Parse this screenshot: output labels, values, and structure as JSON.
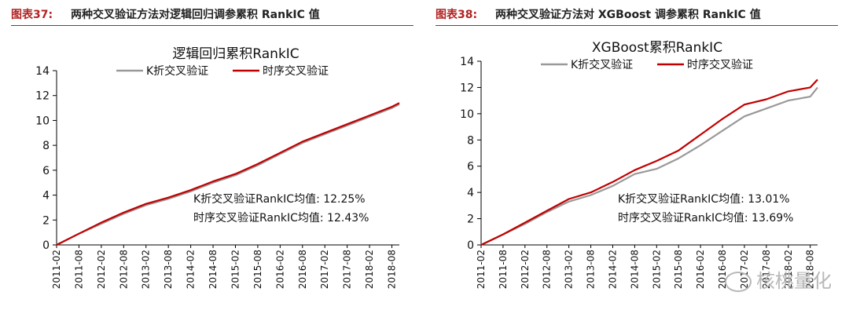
{
  "figures": [
    {
      "fig_num": "图表37:",
      "caption": "两种交叉验证方法对逻辑回归调参累积 RankIC 值"
    },
    {
      "fig_num": "图表38:",
      "caption": "两种交叉验证方法对 XGBoost 调参累积 RankIC 值"
    }
  ],
  "watermark": "核桃量化",
  "colors": {
    "kfold": "#999999",
    "timeseries": "#c00000",
    "axis": "#000000",
    "accent": "#b22222"
  },
  "chart_data": [
    {
      "type": "line",
      "title": "逻辑回归累积RankIC",
      "xlabel": "",
      "ylabel": "",
      "ylim": [
        0,
        14
      ],
      "yticks": [
        "0",
        "2",
        "4",
        "6",
        "8",
        "10",
        "12",
        "14"
      ],
      "grid": false,
      "legend": "top",
      "x_tick_labels": [
        "2011-02",
        "2011-08",
        "2012-02",
        "2012-08",
        "2013-02",
        "2013-08",
        "2014-02",
        "2014-08",
        "2015-02",
        "2015-08",
        "2016-02",
        "2016-08",
        "2017-02",
        "2017-08",
        "2018-02",
        "2018-08"
      ],
      "x": [
        "2011-02",
        "2011-08",
        "2012-02",
        "2012-08",
        "2013-02",
        "2013-08",
        "2014-02",
        "2014-08",
        "2015-02",
        "2015-08",
        "2016-02",
        "2016-08",
        "2017-02",
        "2017-08",
        "2018-02",
        "2018-08",
        "2018-10"
      ],
      "series": [
        {
          "name": "K折交叉验证",
          "values": [
            0.0,
            0.9,
            1.7,
            2.5,
            3.2,
            3.7,
            4.3,
            5.0,
            5.6,
            6.4,
            7.3,
            8.2,
            8.9,
            9.6,
            10.3,
            11.0,
            11.3
          ]
        },
        {
          "name": "时序交叉验证",
          "values": [
            0.0,
            0.9,
            1.8,
            2.6,
            3.3,
            3.8,
            4.4,
            5.1,
            5.7,
            6.5,
            7.4,
            8.3,
            9.0,
            9.7,
            10.4,
            11.1,
            11.4
          ]
        }
      ],
      "annotations": [
        "K折交叉验证RankIC均值: 12.25%",
        "时序交叉验证RankIC均值: 12.43%"
      ]
    },
    {
      "type": "line",
      "title": "XGBoost累积RankIC",
      "xlabel": "",
      "ylabel": "",
      "ylim": [
        0,
        14
      ],
      "yticks": [
        "0",
        "2",
        "4",
        "6",
        "8",
        "10",
        "12",
        "14"
      ],
      "grid": false,
      "legend": "top",
      "x_tick_labels": [
        "2011-02",
        "2011-08",
        "2012-02",
        "2012-08",
        "2013-02",
        "2013-08",
        "2014-02",
        "2014-08",
        "2015-02",
        "2015-08",
        "2016-02",
        "2016-08",
        "2017-02",
        "2017-08",
        "2018-02",
        "2018-08"
      ],
      "x": [
        "2011-02",
        "2011-08",
        "2012-02",
        "2012-08",
        "2013-02",
        "2013-08",
        "2014-02",
        "2014-08",
        "2015-02",
        "2015-08",
        "2016-02",
        "2016-08",
        "2017-02",
        "2017-08",
        "2018-02",
        "2018-08",
        "2018-10"
      ],
      "series": [
        {
          "name": "K折交叉验证",
          "values": [
            0.0,
            0.8,
            1.6,
            2.5,
            3.3,
            3.8,
            4.5,
            5.4,
            5.8,
            6.6,
            7.6,
            8.7,
            9.8,
            10.4,
            11.0,
            11.3,
            12.0
          ]
        },
        {
          "name": "时序交叉验证",
          "values": [
            0.0,
            0.8,
            1.7,
            2.6,
            3.5,
            4.0,
            4.8,
            5.7,
            6.4,
            7.2,
            8.4,
            9.6,
            10.7,
            11.1,
            11.7,
            12.0,
            12.6
          ]
        }
      ],
      "annotations": [
        "K折交叉验证RankIC均值: 13.01%",
        "时序交叉验证RankIC均值: 13.69%"
      ]
    }
  ]
}
